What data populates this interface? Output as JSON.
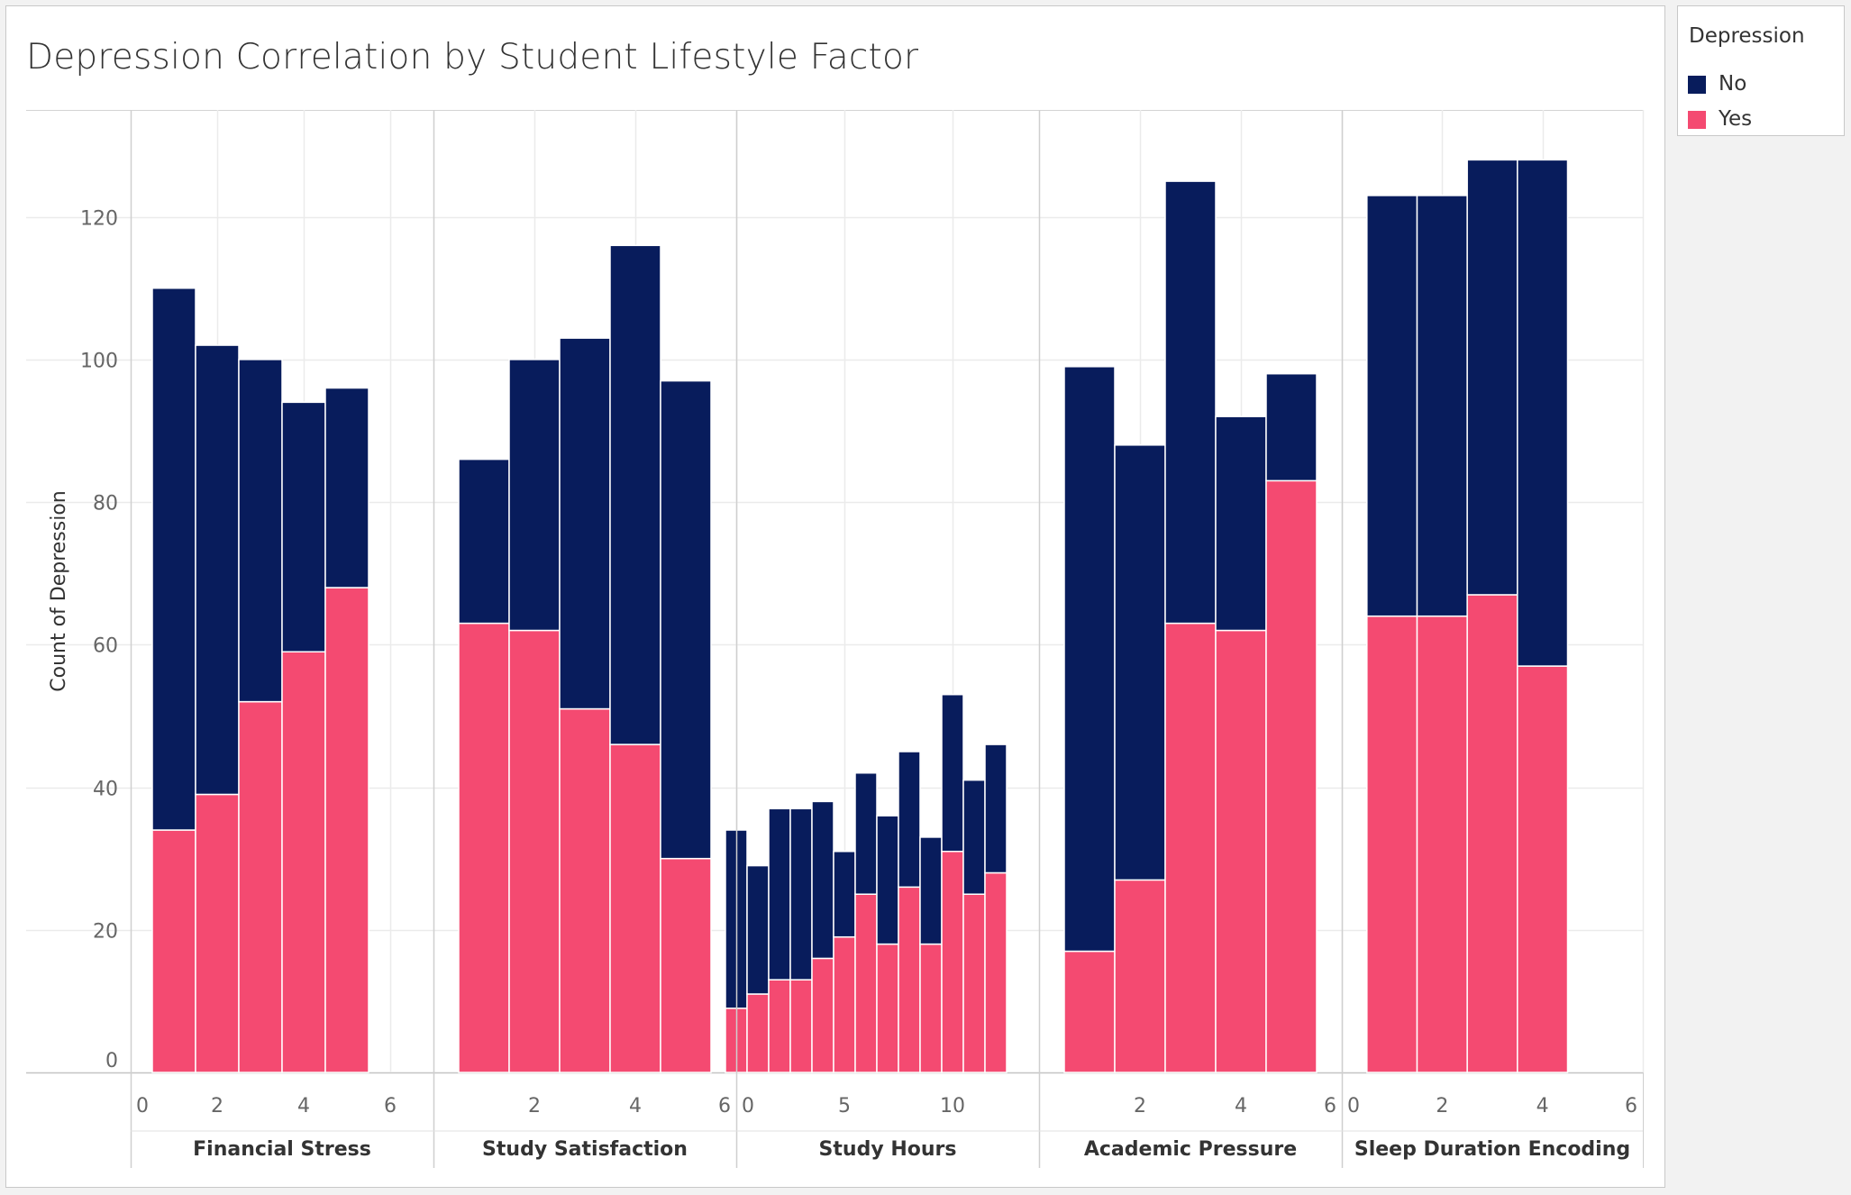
{
  "title": "Depression Correlation by Student Lifestyle Factor",
  "legend": {
    "title": "Depression",
    "items": [
      {
        "label": "No",
        "color": "#081c5c"
      },
      {
        "label": "Yes",
        "color": "#f44a71"
      }
    ]
  },
  "chart_data": {
    "type": "bar",
    "stacked": true,
    "title": "Depression Correlation by Student Lifestyle Factor",
    "ylabel": "Count of Depression",
    "ylim": [
      0,
      135
    ],
    "yticks": [
      0,
      20,
      40,
      60,
      80,
      100,
      120
    ],
    "grid": true,
    "legend_position": "top-right",
    "series_names": [
      "No",
      "Yes"
    ],
    "panels": [
      {
        "name": "Financial Stress",
        "xlim": [
          0,
          7
        ],
        "xticks": [
          0,
          2,
          4,
          6
        ],
        "x": [
          1,
          2,
          3,
          4,
          5
        ],
        "series": [
          {
            "name": "Yes",
            "values": [
              34,
              39,
              52,
              59,
              68
            ]
          },
          {
            "name": "No",
            "values": [
              76,
              63,
              48,
              35,
              28
            ]
          }
        ]
      },
      {
        "name": "Study Satisfaction",
        "xlim": [
          0,
          6
        ],
        "xticks": [
          2,
          4,
          6
        ],
        "x": [
          1,
          2,
          3,
          4,
          5
        ],
        "series": [
          {
            "name": "Yes",
            "values": [
              63,
              62,
              51,
              46,
              30
            ]
          },
          {
            "name": "No",
            "values": [
              23,
              38,
              52,
              70,
              67
            ]
          }
        ]
      },
      {
        "name": "Study Hours",
        "xlim": [
          0,
          14
        ],
        "xticks": [
          0,
          5,
          10
        ],
        "x": [
          0,
          1,
          2,
          3,
          4,
          5,
          6,
          7,
          8,
          9,
          10,
          11,
          12
        ],
        "series": [
          {
            "name": "Yes",
            "values": [
              9,
              11,
              13,
              13,
              16,
              19,
              25,
              18,
              26,
              18,
              31,
              25,
              28
            ]
          },
          {
            "name": "No",
            "values": [
              25,
              18,
              24,
              24,
              22,
              12,
              17,
              18,
              19,
              15,
              22,
              16,
              18
            ]
          }
        ]
      },
      {
        "name": "Academic Pressure",
        "xlim": [
          0,
          6
        ],
        "xticks": [
          2,
          4,
          6
        ],
        "x": [
          1,
          2,
          3,
          4,
          5
        ],
        "series": [
          {
            "name": "Yes",
            "values": [
              17,
              27,
              63,
              62,
              83
            ]
          },
          {
            "name": "No",
            "values": [
              82,
              61,
              62,
              30,
              15
            ]
          }
        ]
      },
      {
        "name": "Sleep Duration Encoding",
        "xlim": [
          0,
          6
        ],
        "xticks": [
          0,
          2,
          4,
          6
        ],
        "x": [
          1,
          2,
          3,
          4
        ],
        "series": [
          {
            "name": "Yes",
            "values": [
              64,
              64,
              67,
              57
            ]
          },
          {
            "name": "No",
            "values": [
              59,
              59,
              61,
              71
            ]
          }
        ]
      }
    ]
  }
}
